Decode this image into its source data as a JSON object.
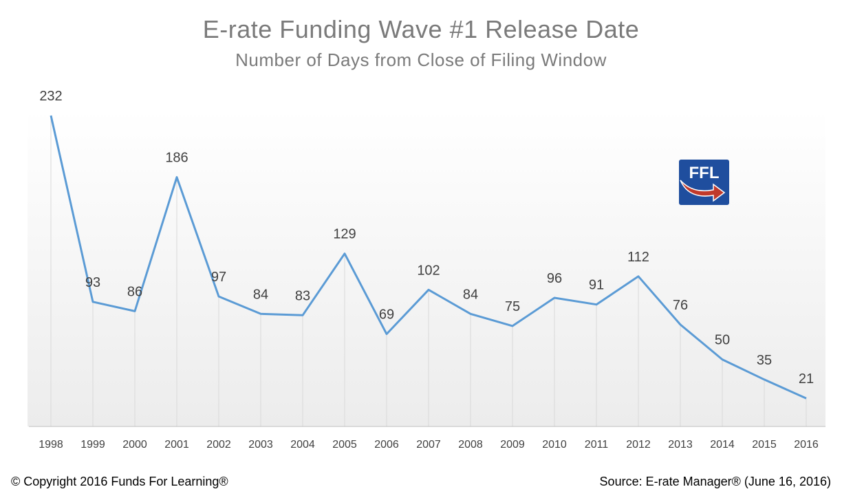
{
  "chart_data": {
    "type": "line",
    "title": "E-rate Funding Wave #1 Release Date",
    "subtitle": "Number of Days from Close of Filing Window",
    "categories": [
      "1998",
      "1999",
      "2000",
      "2001",
      "2002",
      "2003",
      "2004",
      "2005",
      "2006",
      "2007",
      "2008",
      "2009",
      "2010",
      "2011",
      "2012",
      "2013",
      "2014",
      "2015",
      "2016"
    ],
    "series": [
      {
        "values": [
          232,
          93,
          86,
          186,
          97,
          84,
          83,
          129,
          69,
          102,
          84,
          75,
          96,
          91,
          112,
          76,
          50,
          35,
          21
        ]
      }
    ],
    "xlabel": "",
    "ylabel": "",
    "ylim": [
      0,
      250
    ],
    "grid": "vertical drop lines",
    "data_labels": true,
    "colors": {
      "line": "#5b9bd5",
      "gridline": "#d9d9d9",
      "text": "#404040",
      "title": "#7a7a7a"
    }
  },
  "logo": {
    "text": "FFL",
    "bg_color": "#1f4e9e",
    "arrow_color": "#c0392b"
  },
  "footer": {
    "copyright": "© Copyright 2016 Funds For Learning®",
    "source": "Source: E-rate Manager® (June 16, 2016)"
  }
}
